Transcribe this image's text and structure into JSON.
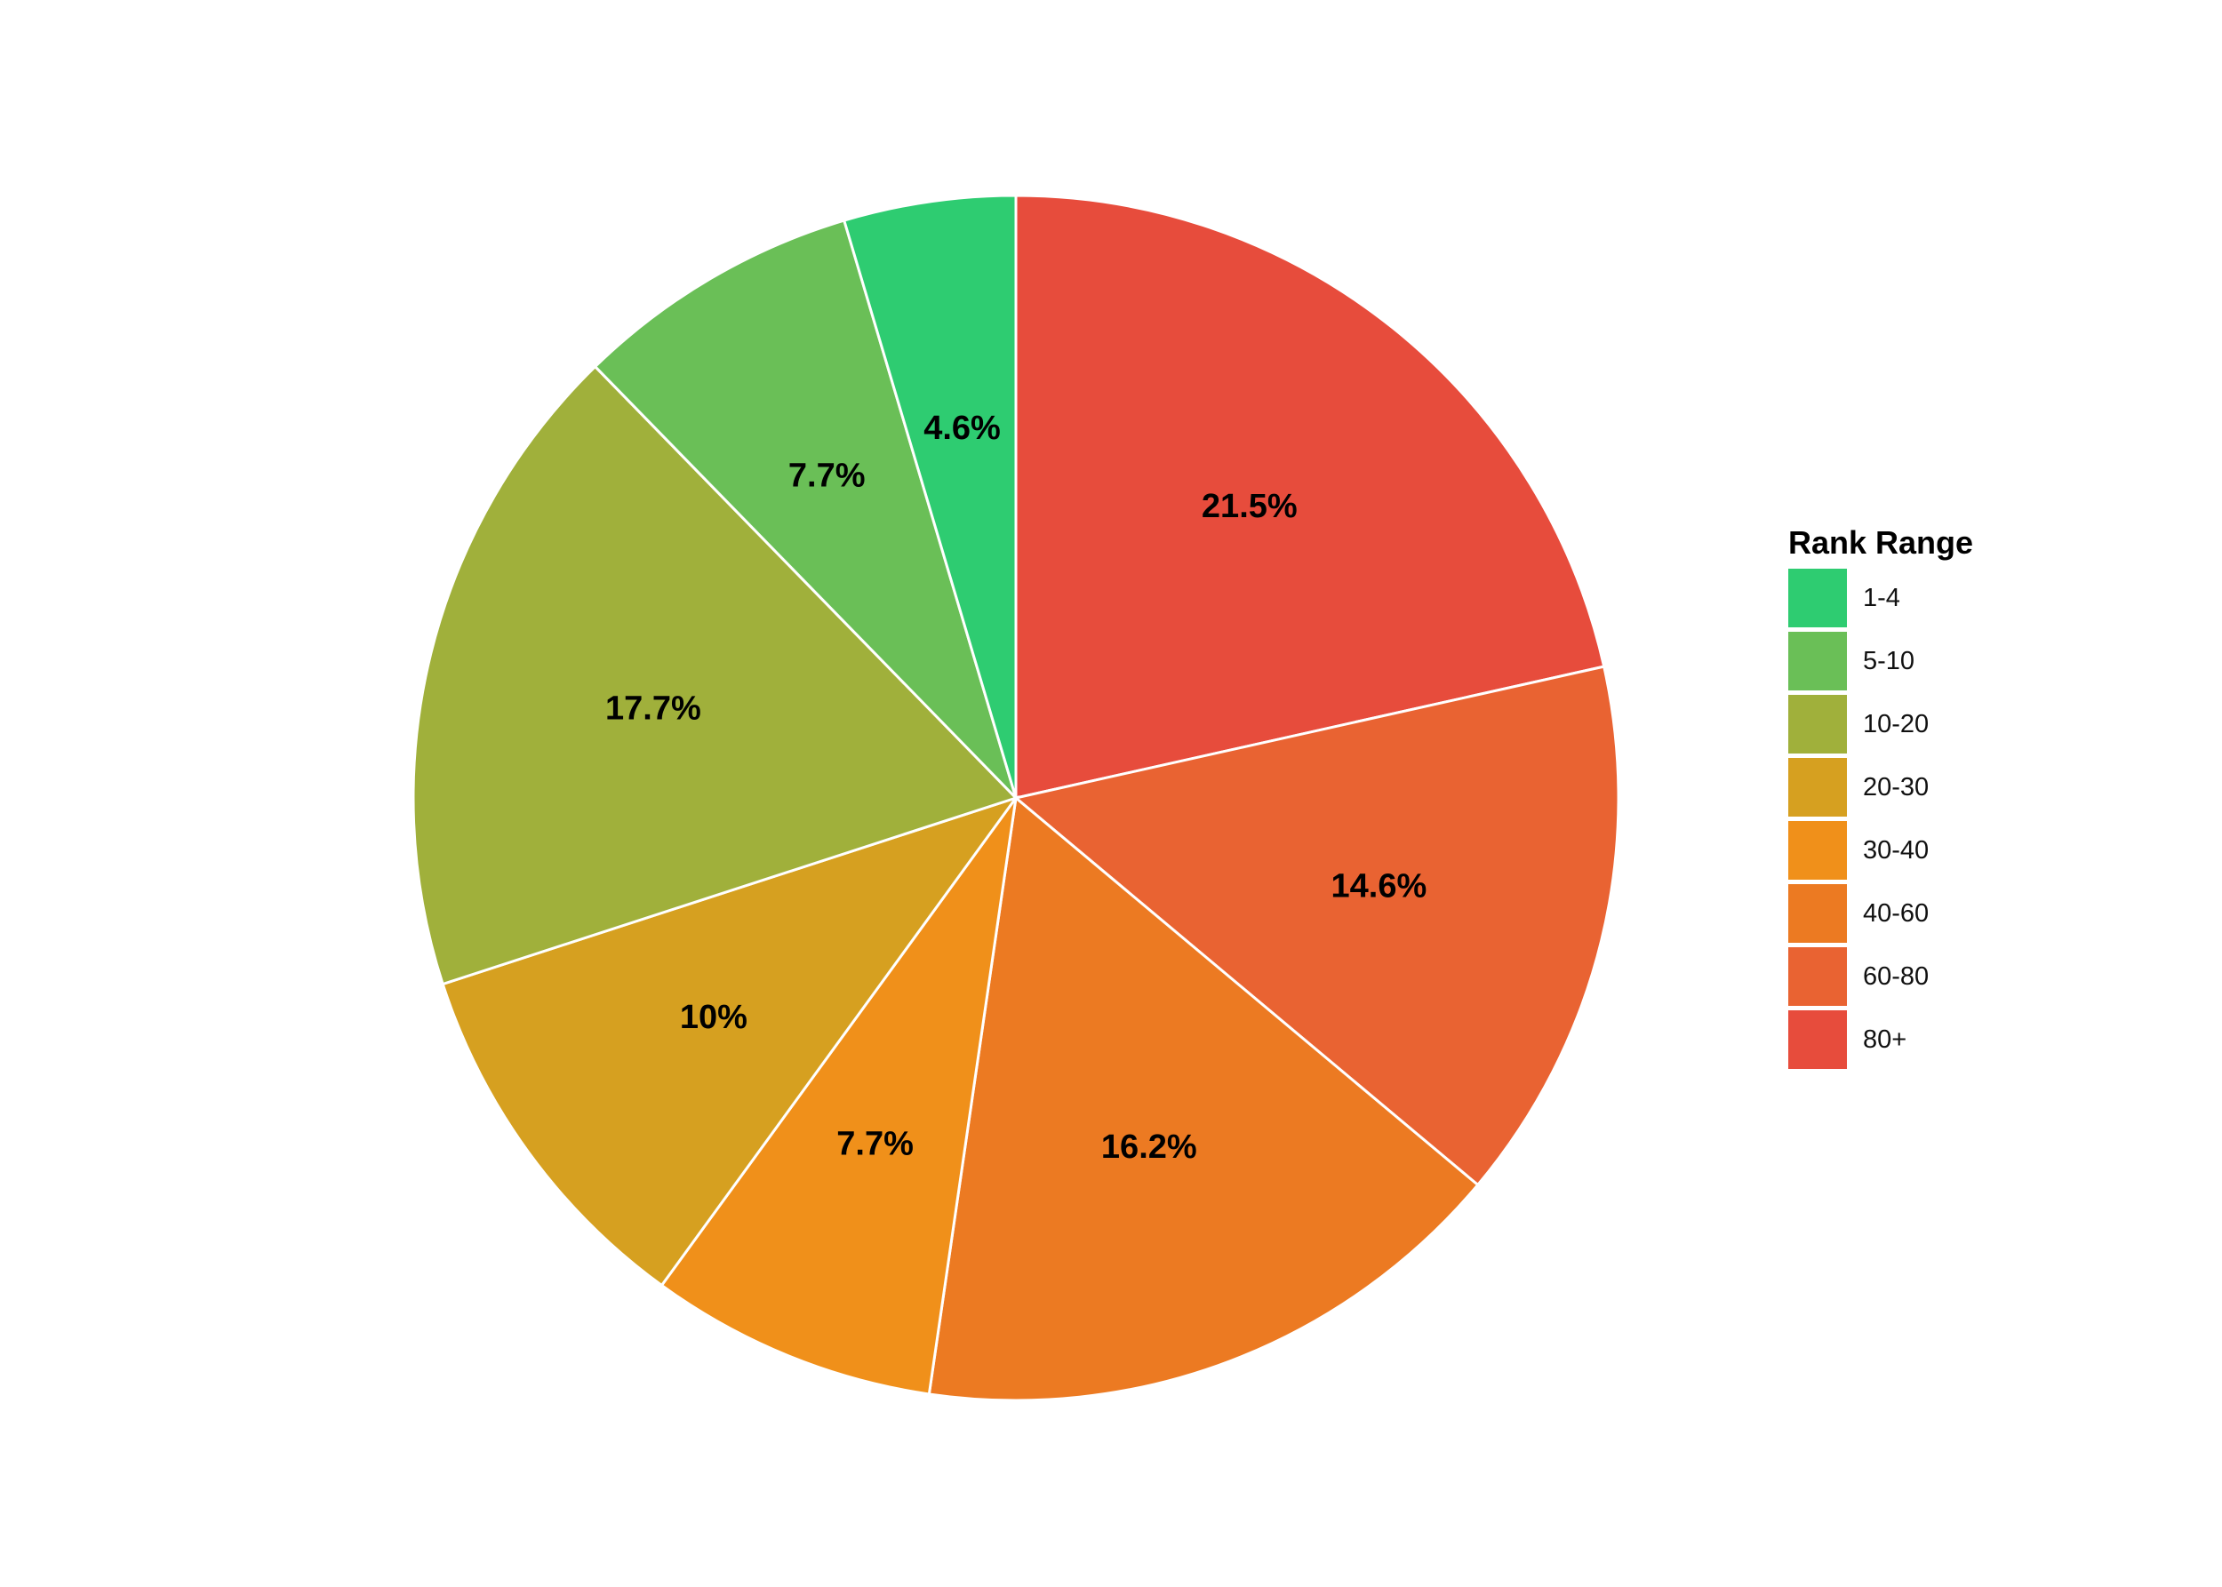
{
  "chart_data": {
    "type": "pie",
    "legend_title": "Rank Range",
    "legend_position": "right",
    "start_angle": "12 o'clock, clockwise",
    "categories": [
      "1-4",
      "5-10",
      "10-20",
      "20-30",
      "30-40",
      "40-60",
      "60-80",
      "80+"
    ],
    "values": [
      4.6,
      7.7,
      17.7,
      10,
      7.7,
      16.2,
      14.6,
      21.5
    ],
    "labels": [
      "4.6%",
      "7.7%",
      "17.7%",
      "10%",
      "7.7%",
      "16.2%",
      "14.6%",
      "21.5%"
    ],
    "colors": [
      "#2ecc71",
      "#6abf57",
      "#a0b03b",
      "#d6a020",
      "#f0901a",
      "#ec7a22",
      "#e96332",
      "#e74c3c"
    ],
    "draw_order": [
      "80+",
      "60-80",
      "40-60",
      "30-40",
      "20-30",
      "10-20",
      "5-10",
      "1-4"
    ],
    "slice_border_color": "#ffffff"
  }
}
